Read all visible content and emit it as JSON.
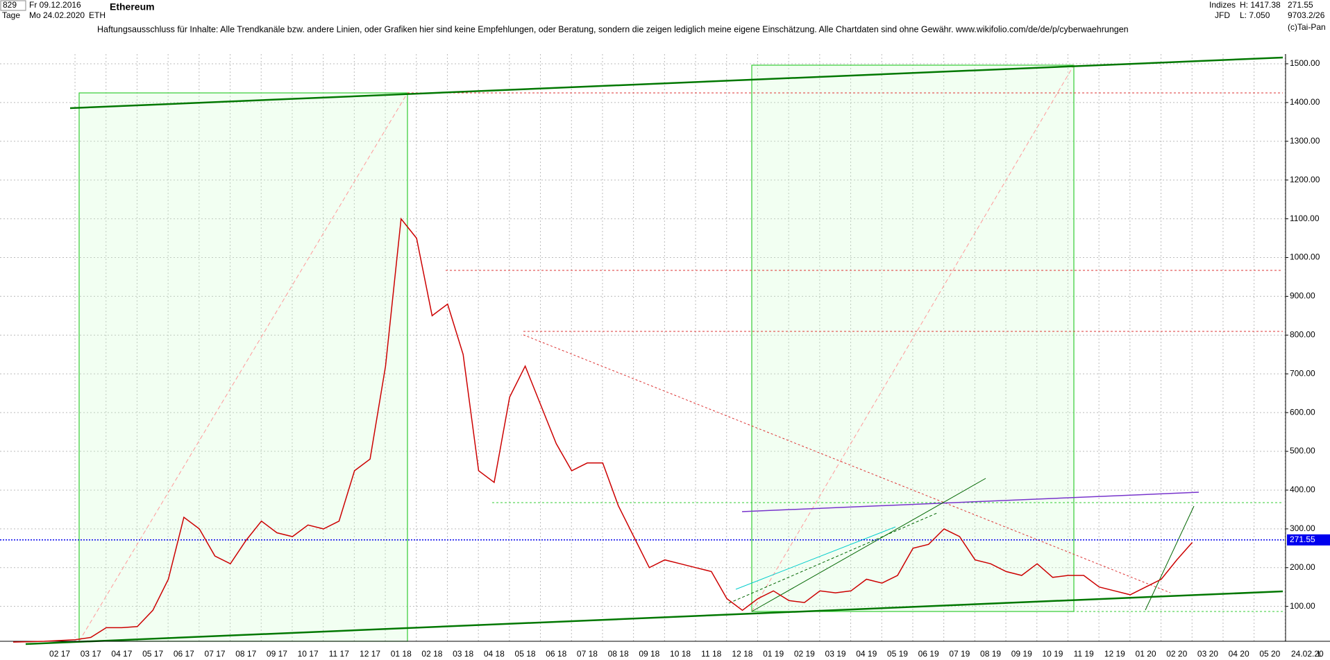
{
  "header": {
    "count": "829",
    "from": "Fr 09.12.2016",
    "period": "Tage",
    "to": "Mo 24.02.2020",
    "symbol": "ETH",
    "group": "Indizes",
    "exchange": "JFD",
    "high": "H: 1417.38",
    "low": "L: 7.050",
    "extra": "9703.2/26",
    "copyright": "(c)Tai-Pan",
    "date_end": "24.02.20",
    "scale_mode": "L"
  },
  "chart_data": {
    "type": "line",
    "title": "Ethereum",
    "subtitle": "Haftungsausschluss für Inhalte: Alle Trendkanäle bzw. andere Linien, oder Grafiken hier sind keine Empfehlungen, oder Beratung, sondern die zeigen lediglich meine eigene Einschätzung. Alle Chartdaten sind ohne Gewähr.  www.wikifolio.com/de/de/p/cyberwaehrungen",
    "categories": [
      null,
      null,
      null,
      "02 17",
      null,
      "03 17",
      null,
      "04 17",
      null,
      "05 17",
      null,
      "06 17",
      null,
      "07 17",
      null,
      "08 17",
      null,
      "09 17",
      null,
      "10 17",
      null,
      "11 17",
      null,
      "12 17",
      null,
      "01 18",
      null,
      "02 18",
      null,
      "03 18",
      null,
      "04 18",
      null,
      "05 18",
      null,
      "06 18",
      null,
      "07 18",
      null,
      "08 18",
      null,
      "09 18",
      null,
      "10 18",
      null,
      "11 18",
      null,
      "12 18",
      null,
      "01 19",
      null,
      "02 19",
      null,
      "03 19",
      null,
      "04 19",
      null,
      "05 19",
      null,
      "06 19",
      null,
      "07 19",
      null,
      "08 19",
      null,
      "09 19",
      null,
      "10 19",
      null,
      "11 19",
      null,
      "12 19",
      null,
      "01 20",
      null,
      "02 20",
      null,
      "03 20",
      null,
      "04 20",
      null,
      "05 20",
      null
    ],
    "values": [
      8,
      9,
      10,
      12,
      14,
      20,
      45,
      45,
      48,
      90,
      170,
      330,
      300,
      230,
      210,
      270,
      320,
      290,
      280,
      310,
      300,
      320,
      450,
      480,
      720,
      1100,
      1050,
      850,
      880,
      750,
      450,
      420,
      640,
      720,
      620,
      520,
      450,
      470,
      470,
      360,
      280,
      200,
      220,
      210,
      200,
      190,
      120,
      90,
      120,
      140,
      115,
      110,
      140,
      135,
      140,
      170,
      160,
      180,
      250,
      260,
      300,
      280,
      220,
      210,
      190,
      180,
      210,
      175,
      180,
      180,
      150,
      140,
      130,
      150,
      170,
      220,
      265,
      null,
      null,
      null,
      null,
      null,
      null
    ],
    "color": "#cc0000",
    "ylim": [
      10,
      1525
    ],
    "yticks": [
      {
        "value": 100,
        "label": "100.00"
      },
      {
        "value": 200,
        "label": "200.00"
      },
      {
        "value": 300,
        "label": "300.00"
      },
      {
        "value": 400,
        "label": "400.00"
      },
      {
        "value": 500,
        "label": "500.00"
      },
      {
        "value": 600,
        "label": "600.00"
      },
      {
        "value": 700,
        "label": "700.00"
      },
      {
        "value": 800,
        "label": "800.00"
      },
      {
        "value": 900,
        "label": "900.00"
      },
      {
        "value": 1000,
        "label": "1000.00"
      },
      {
        "value": 1100,
        "label": "1100.00"
      },
      {
        "value": 1200,
        "label": "1200.00"
      },
      {
        "value": 1300,
        "label": "1300.00"
      },
      {
        "value": 1400,
        "label": "1400.00"
      },
      {
        "value": 1500,
        "label": "1500.00"
      }
    ],
    "last_price": {
      "value": 271.55,
      "label": "271.55"
    },
    "last_price_color": "#0000ee",
    "grid": true
  }
}
